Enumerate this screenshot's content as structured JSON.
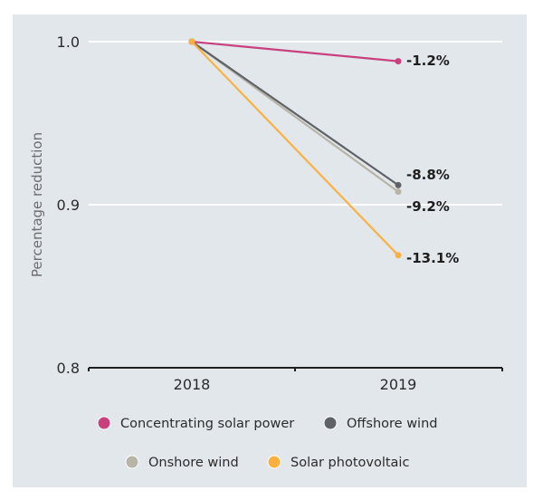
{
  "chart_data": {
    "type": "line",
    "title": "",
    "xlabel": "",
    "ylabel": "Percentage reduction",
    "categories": [
      "2018",
      "2019"
    ],
    "ylim": [
      0.8,
      1.0
    ],
    "yticks": [
      "0.8",
      "0.9",
      "1.0"
    ],
    "grid": true,
    "legend_position": "bottom",
    "series": [
      {
        "name": "Concentrating solar power",
        "values": [
          1.0,
          0.988
        ],
        "label": "-1.2%",
        "color": "#c9407f"
      },
      {
        "name": "Offshore wind",
        "values": [
          1.0,
          0.912
        ],
        "label": "-8.8%",
        "color": "#5f6368"
      },
      {
        "name": "Onshore wind",
        "values": [
          1.0,
          0.908
        ],
        "label": "-9.2%",
        "color": "#b7b5a8"
      },
      {
        "name": "Solar photovoltaic",
        "values": [
          1.0,
          0.869
        ],
        "label": "-13.1%",
        "color": "#fbb040"
      }
    ]
  }
}
